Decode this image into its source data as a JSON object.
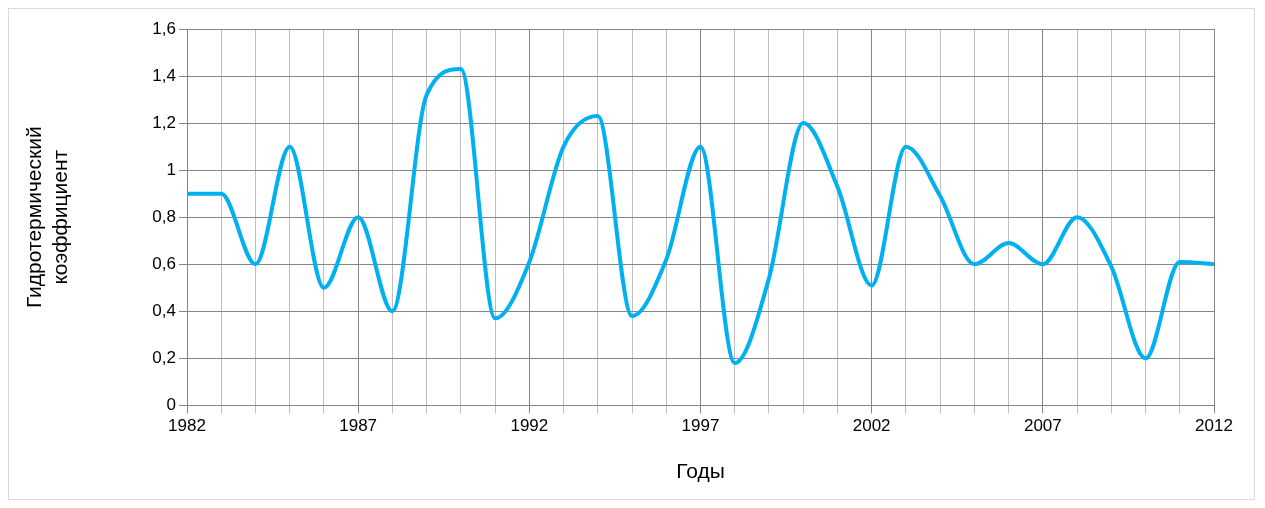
{
  "chart_data": {
    "type": "line",
    "xlabel": "Годы",
    "ylabel": "Гидротермический коэффициент",
    "x": [
      1982,
      1983,
      1984,
      1985,
      1986,
      1987,
      1988,
      1989,
      1990,
      1991,
      1992,
      1993,
      1994,
      1995,
      1996,
      1997,
      1998,
      1999,
      2000,
      2001,
      2002,
      2003,
      2004,
      2005,
      2006,
      2007,
      2008,
      2009,
      2010,
      2011,
      2012
    ],
    "series": [
      {
        "color": "#00b0f0",
        "values": [
          0.9,
          0.9,
          0.6,
          1.1,
          0.5,
          0.8,
          0.4,
          1.32,
          1.43,
          0.37,
          0.61,
          1.1,
          1.23,
          0.38,
          0.62,
          1.1,
          0.18,
          0.54,
          1.2,
          0.93,
          0.51,
          1.1,
          0.89,
          0.6,
          0.69,
          0.6,
          0.8,
          0.59,
          0.2,
          0.61,
          0.6
        ]
      }
    ],
    "xlim": [
      1982,
      2012
    ],
    "xticks": [
      1982,
      {
        "value": 1983,
        "label": null
      },
      {
        "value": 1984,
        "label": null
      },
      {
        "value": 1985,
        "label": null
      },
      {
        "value": 1986,
        "label": null
      },
      1987,
      {
        "value": 1988,
        "label": null
      },
      {
        "value": 1989,
        "label": null
      },
      {
        "value": 1990,
        "label": null
      },
      {
        "value": 1991,
        "label": null
      },
      1992,
      {
        "value": 1993,
        "label": null
      },
      {
        "value": 1994,
        "label": null
      },
      {
        "value": 1995,
        "label": null
      },
      {
        "value": 1996,
        "label": null
      },
      1997,
      {
        "value": 1998,
        "label": null
      },
      {
        "value": 1999,
        "label": null
      },
      {
        "value": 2000,
        "label": null
      },
      {
        "value": 2001,
        "label": null
      },
      2002,
      {
        "value": 2003,
        "label": null
      },
      {
        "value": 2004,
        "label": null
      },
      {
        "value": 2005,
        "label": null
      },
      {
        "value": 2006,
        "label": null
      },
      2007,
      {
        "value": 2008,
        "label": null
      },
      {
        "value": 2009,
        "label": null
      },
      {
        "value": 2010,
        "label": null
      },
      {
        "value": 2011,
        "label": null
      },
      2012
    ],
    "ylim": [
      0,
      1.6
    ],
    "yticks": [
      {
        "value": 0,
        "label": "0"
      },
      {
        "value": 0.2,
        "label": "0,2"
      },
      {
        "value": 0.4,
        "label": "0,4"
      },
      {
        "value": 0.6,
        "label": "0,6"
      },
      {
        "value": 0.8,
        "label": "0,8"
      },
      {
        "value": 1,
        "label": "1"
      },
      {
        "value": 1.2,
        "label": "1,2"
      },
      {
        "value": 1.4,
        "label": "1,4"
      },
      {
        "value": 1.6,
        "label": "1,6"
      }
    ],
    "grid": true,
    "legend": false,
    "marker": "none",
    "line_style": "solid"
  }
}
